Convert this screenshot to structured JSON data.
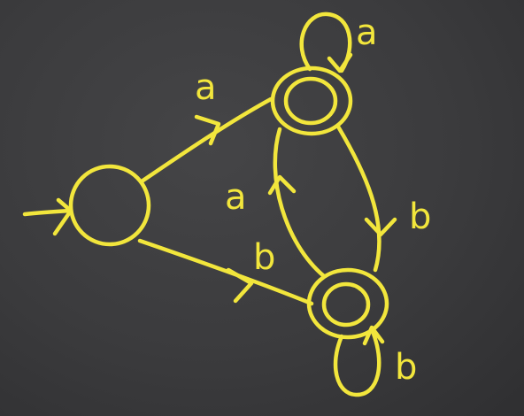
{
  "diagram": {
    "type": "state-diagram",
    "chalk_color": "#f2e63c",
    "background_color": "#3a3a3c",
    "states": [
      {
        "id": "start",
        "accepting": false,
        "initial": true
      },
      {
        "id": "top",
        "accepting": true,
        "initial": false
      },
      {
        "id": "bottom",
        "accepting": true,
        "initial": false
      }
    ],
    "transitions": [
      {
        "from": "start",
        "to": "top",
        "label": "a"
      },
      {
        "from": "start",
        "to": "bottom",
        "label": "b"
      },
      {
        "from": "top",
        "to": "top",
        "label": "a"
      },
      {
        "from": "top",
        "to": "bottom",
        "label": "b"
      },
      {
        "from": "bottom",
        "to": "top",
        "label": "a"
      },
      {
        "from": "bottom",
        "to": "bottom",
        "label": "b"
      }
    ]
  }
}
